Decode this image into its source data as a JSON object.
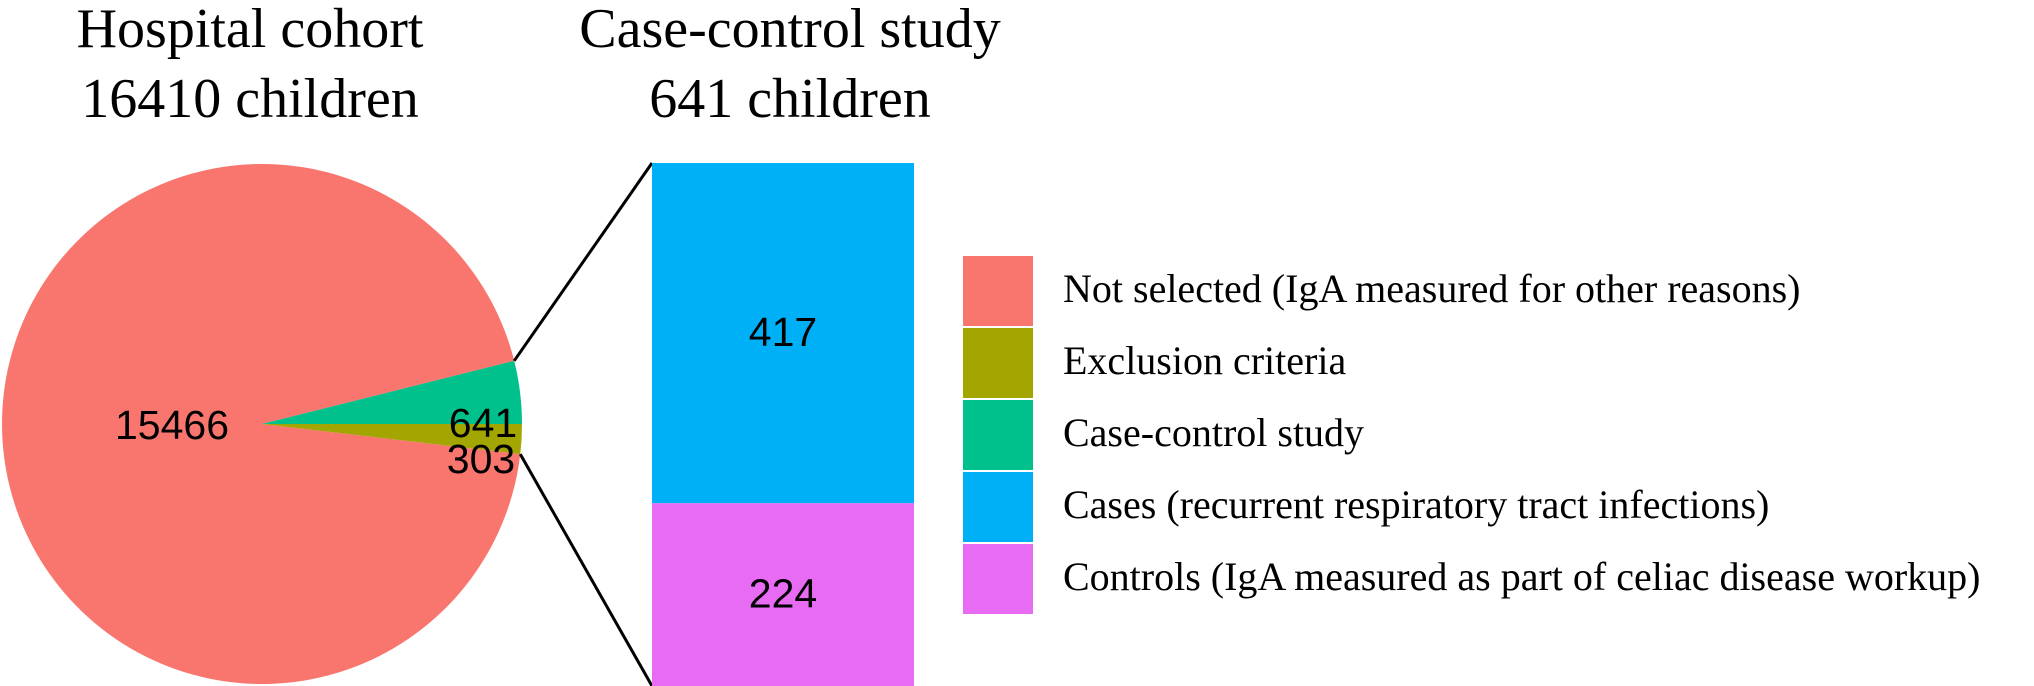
{
  "chart_data": [
    {
      "type": "pie",
      "title": "Hospital cohort",
      "subtitle": "16410 children",
      "slices": [
        {
          "label": "Not selected (IgA measured for other reasons)",
          "value": 15466,
          "color": "#F8766D",
          "data_label": "15466"
        },
        {
          "label": "Case-control study",
          "value": 641,
          "color": "#00C08B",
          "data_label": "641"
        },
        {
          "label": "Exclusion criteria",
          "value": 303,
          "color": "#A3A500",
          "data_label": "303"
        }
      ]
    },
    {
      "type": "bar",
      "stacked": true,
      "title": "Case-control study",
      "subtitle": "641 children",
      "series": [
        {
          "name": "Cases (recurrent respiratory tract infections)",
          "value": 417,
          "color": "#00B0F6",
          "data_label": "417"
        },
        {
          "name": "Controls (IgA measured as part of celiac disease workup)",
          "value": 224,
          "color": "#E76BF3",
          "data_label": "224"
        }
      ]
    }
  ],
  "legend": {
    "placement": "right",
    "items": [
      {
        "label": "Not selected (IgA measured for other reasons)",
        "color": "#F8766D"
      },
      {
        "label": "Exclusion criteria",
        "color": "#A3A500"
      },
      {
        "label": "Case-control study",
        "color": "#00C08B"
      },
      {
        "label": "Cases (recurrent respiratory tract infections)",
        "color": "#00B0F6"
      },
      {
        "label": "Controls (IgA measured as part of celiac disease workup)",
        "color": "#E76BF3"
      }
    ]
  }
}
